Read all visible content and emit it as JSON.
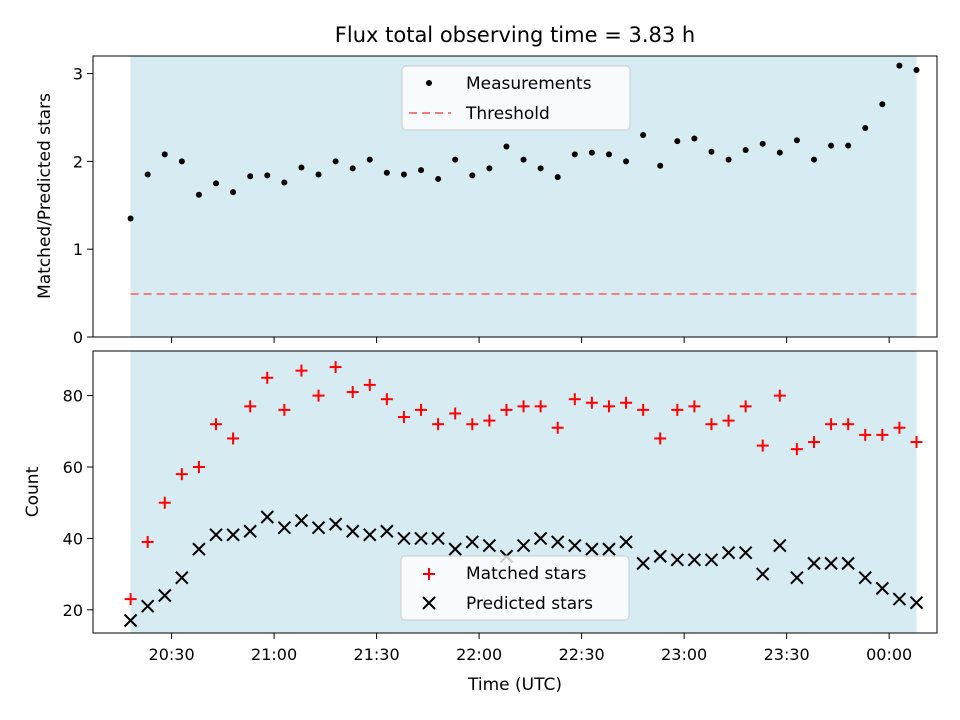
{
  "chart_data": [
    {
      "type": "scatter",
      "title": "Flux total observing time = 3.83 h",
      "xlabel": "",
      "ylabel": "Matched/Predicted stars",
      "ylim": [
        0,
        3.2
      ],
      "yticks": [
        "0",
        "1",
        "2",
        "3"
      ],
      "shaded_interval": [
        "20:18",
        "00:08"
      ],
      "shade_color": "#add8e6",
      "legend_position": "top-center",
      "threshold": {
        "name": "Threshold",
        "value": 0.49,
        "color": "#f08080",
        "style": "dashed"
      },
      "series": [
        {
          "name": "Measurements",
          "color": "#000000",
          "marker": "dot",
          "points": [
            [
              "20:18",
              1.35
            ],
            [
              "20:23",
              1.85
            ],
            [
              "20:28",
              2.08
            ],
            [
              "20:33",
              2.0
            ],
            [
              "20:38",
              1.62
            ],
            [
              "20:43",
              1.75
            ],
            [
              "20:48",
              1.65
            ],
            [
              "20:53",
              1.83
            ],
            [
              "20:58",
              1.84
            ],
            [
              "21:03",
              1.76
            ],
            [
              "21:08",
              1.93
            ],
            [
              "21:13",
              1.85
            ],
            [
              "21:18",
              2.0
            ],
            [
              "21:23",
              1.92
            ],
            [
              "21:28",
              2.02
            ],
            [
              "21:33",
              1.87
            ],
            [
              "21:38",
              1.85
            ],
            [
              "21:43",
              1.9
            ],
            [
              "21:48",
              1.8
            ],
            [
              "21:53",
              2.02
            ],
            [
              "21:58",
              1.84
            ],
            [
              "22:03",
              1.92
            ],
            [
              "22:08",
              2.17
            ],
            [
              "22:13",
              2.02
            ],
            [
              "22:18",
              1.92
            ],
            [
              "22:23",
              1.82
            ],
            [
              "22:28",
              2.08
            ],
            [
              "22:33",
              2.1
            ],
            [
              "22:38",
              2.08
            ],
            [
              "22:43",
              2.0
            ],
            [
              "22:48",
              2.3
            ],
            [
              "22:53",
              1.95
            ],
            [
              "22:58",
              2.23
            ],
            [
              "23:03",
              2.26
            ],
            [
              "23:08",
              2.11
            ],
            [
              "23:13",
              2.02
            ],
            [
              "23:18",
              2.13
            ],
            [
              "23:23",
              2.2
            ],
            [
              "23:28",
              2.1
            ],
            [
              "23:33",
              2.24
            ],
            [
              "23:38",
              2.02
            ],
            [
              "23:43",
              2.18
            ],
            [
              "23:48",
              2.18
            ],
            [
              "23:53",
              2.38
            ],
            [
              "23:58",
              2.65
            ],
            [
              "00:03",
              3.09
            ],
            [
              "00:08",
              3.04
            ]
          ]
        }
      ]
    },
    {
      "type": "scatter",
      "title": "",
      "xlabel": "Time (UTC)",
      "ylabel": "Count",
      "ylim": [
        13.5,
        92.5
      ],
      "yticks": [
        "20",
        "40",
        "60",
        "80"
      ],
      "xticks": [
        "20:30",
        "21:00",
        "21:30",
        "22:00",
        "22:30",
        "23:00",
        "23:30",
        "00:00"
      ],
      "shaded_interval": [
        "20:18",
        "00:08"
      ],
      "shade_color": "#add8e6",
      "legend_position": "bottom-center",
      "series": [
        {
          "name": "Matched stars",
          "color": "#ff0000",
          "marker": "plus",
          "points": [
            [
              "20:18",
              23
            ],
            [
              "20:23",
              39
            ],
            [
              "20:28",
              50
            ],
            [
              "20:33",
              58
            ],
            [
              "20:38",
              60
            ],
            [
              "20:43",
              72
            ],
            [
              "20:48",
              68
            ],
            [
              "20:53",
              77
            ],
            [
              "20:58",
              85
            ],
            [
              "21:03",
              76
            ],
            [
              "21:08",
              87
            ],
            [
              "21:13",
              80
            ],
            [
              "21:18",
              88
            ],
            [
              "21:23",
              81
            ],
            [
              "21:28",
              83
            ],
            [
              "21:33",
              79
            ],
            [
              "21:38",
              74
            ],
            [
              "21:43",
              76
            ],
            [
              "21:48",
              72
            ],
            [
              "21:53",
              75
            ],
            [
              "21:58",
              72
            ],
            [
              "22:03",
              73
            ],
            [
              "22:08",
              76
            ],
            [
              "22:13",
              77
            ],
            [
              "22:18",
              77
            ],
            [
              "22:23",
              71
            ],
            [
              "22:28",
              79
            ],
            [
              "22:33",
              78
            ],
            [
              "22:38",
              77
            ],
            [
              "22:43",
              78
            ],
            [
              "22:48",
              76
            ],
            [
              "22:53",
              68
            ],
            [
              "22:58",
              76
            ],
            [
              "23:03",
              77
            ],
            [
              "23:08",
              72
            ],
            [
              "23:13",
              73
            ],
            [
              "23:18",
              77
            ],
            [
              "23:23",
              66
            ],
            [
              "23:28",
              80
            ],
            [
              "23:33",
              65
            ],
            [
              "23:38",
              67
            ],
            [
              "23:43",
              72
            ],
            [
              "23:48",
              72
            ],
            [
              "23:53",
              69
            ],
            [
              "23:58",
              69
            ],
            [
              "00:03",
              71
            ],
            [
              "00:08",
              67
            ]
          ]
        },
        {
          "name": "Predicted stars",
          "color": "#000000",
          "marker": "x",
          "points": [
            [
              "20:18",
              17
            ],
            [
              "20:23",
              21
            ],
            [
              "20:28",
              24
            ],
            [
              "20:33",
              29
            ],
            [
              "20:38",
              37
            ],
            [
              "20:43",
              41
            ],
            [
              "20:48",
              41
            ],
            [
              "20:53",
              42
            ],
            [
              "20:58",
              46
            ],
            [
              "21:03",
              43
            ],
            [
              "21:08",
              45
            ],
            [
              "21:13",
              43
            ],
            [
              "21:18",
              44
            ],
            [
              "21:23",
              42
            ],
            [
              "21:28",
              41
            ],
            [
              "21:33",
              42
            ],
            [
              "21:38",
              40
            ],
            [
              "21:43",
              40
            ],
            [
              "21:48",
              40
            ],
            [
              "21:53",
              37
            ],
            [
              "21:58",
              39
            ],
            [
              "22:03",
              38
            ],
            [
              "22:08",
              35
            ],
            [
              "22:13",
              38
            ],
            [
              "22:18",
              40
            ],
            [
              "22:23",
              39
            ],
            [
              "22:28",
              38
            ],
            [
              "22:33",
              37
            ],
            [
              "22:38",
              37
            ],
            [
              "22:43",
              39
            ],
            [
              "22:48",
              33
            ],
            [
              "22:53",
              35
            ],
            [
              "22:58",
              34
            ],
            [
              "23:03",
              34
            ],
            [
              "23:08",
              34
            ],
            [
              "23:13",
              36
            ],
            [
              "23:18",
              36
            ],
            [
              "23:23",
              30
            ],
            [
              "23:28",
              38
            ],
            [
              "23:33",
              29
            ],
            [
              "23:38",
              33
            ],
            [
              "23:43",
              33
            ],
            [
              "23:48",
              33
            ],
            [
              "23:53",
              29
            ],
            [
              "23:58",
              26
            ],
            [
              "00:03",
              23
            ],
            [
              "00:08",
              22
            ]
          ]
        }
      ]
    }
  ]
}
